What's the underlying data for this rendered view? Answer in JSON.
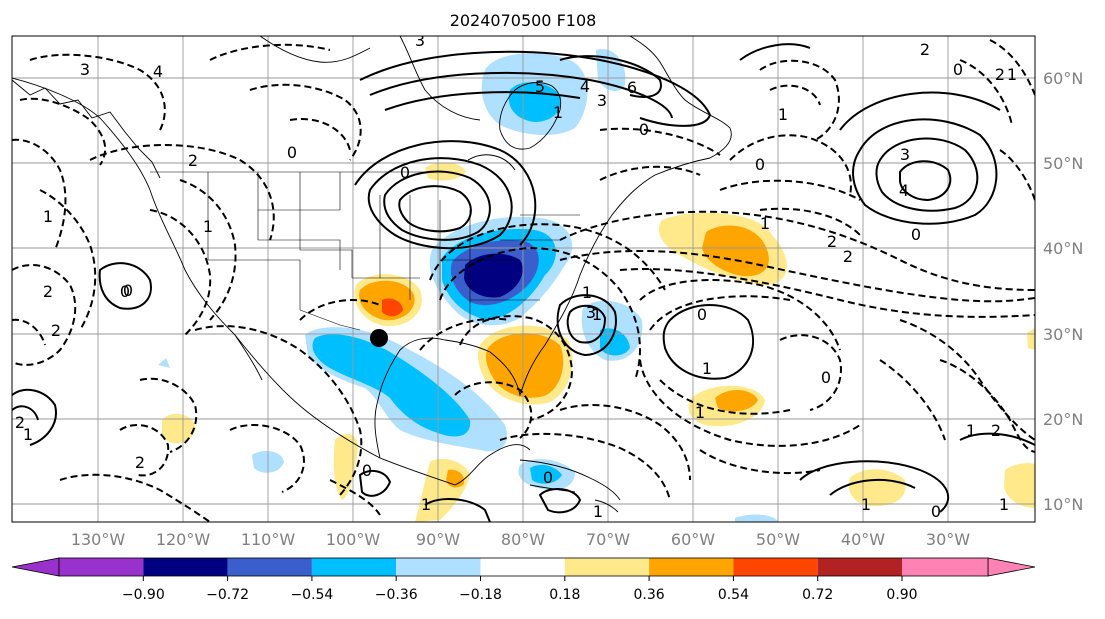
{
  "title": "2024070500 F108",
  "longitude_labels": [
    "130°W",
    "120°W",
    "110°W",
    "100°W",
    "90°W",
    "80°W",
    "70°W",
    "60°W",
    "50°W",
    "40°W",
    "30°W"
  ],
  "latitude_labels": [
    "60°N",
    "50°N",
    "40°N",
    "30°N",
    "20°N",
    "10°N"
  ],
  "colorbar": {
    "tick_labels": [
      "−0.90",
      "−0.72",
      "−0.54",
      "−0.36",
      "−0.18",
      "0.18",
      "0.36",
      "0.54",
      "0.72",
      "0.90"
    ],
    "colors": {
      "under": "#9932cc",
      "bins": [
        "#000080",
        "#3a5fcd",
        "#00bfff",
        "#b0e0ff",
        "#ffffff",
        "#ffe98a",
        "#ffa500",
        "#ff4500",
        "#b22222"
      ],
      "over": "#ff82b4"
    }
  },
  "contour_labels": [
    {
      "text": "3"
    },
    {
      "text": "4"
    },
    {
      "text": "2"
    },
    {
      "text": "0"
    },
    {
      "text": "1"
    },
    {
      "text": "2"
    },
    {
      "text": "2"
    },
    {
      "text": "0"
    },
    {
      "text": "1"
    },
    {
      "text": "2"
    },
    {
      "text": "2"
    },
    {
      "text": "1"
    },
    {
      "text": "0"
    },
    {
      "text": "3"
    },
    {
      "text": "6"
    },
    {
      "text": "5"
    },
    {
      "text": "4"
    },
    {
      "text": "3"
    },
    {
      "text": "1"
    },
    {
      "text": "0"
    },
    {
      "text": "1"
    },
    {
      "text": "1"
    },
    {
      "text": "3"
    },
    {
      "text": "1"
    },
    {
      "text": "0"
    },
    {
      "text": "2"
    },
    {
      "text": "2"
    },
    {
      "text": "0"
    },
    {
      "text": "3"
    },
    {
      "text": "4"
    },
    {
      "text": "1"
    },
    {
      "text": "0"
    },
    {
      "text": "2"
    },
    {
      "text": "2"
    },
    {
      "text": "1"
    },
    {
      "text": "0"
    },
    {
      "text": "1"
    },
    {
      "text": "0"
    },
    {
      "text": "1"
    },
    {
      "text": "1"
    },
    {
      "text": "0"
    },
    {
      "text": "2"
    },
    {
      "text": "1"
    },
    {
      "text": "1"
    },
    {
      "text": "0"
    },
    {
      "text": "1"
    },
    {
      "text": "0"
    },
    {
      "text": "1"
    },
    {
      "text": "0"
    }
  ],
  "marker": {
    "label": ""
  }
}
